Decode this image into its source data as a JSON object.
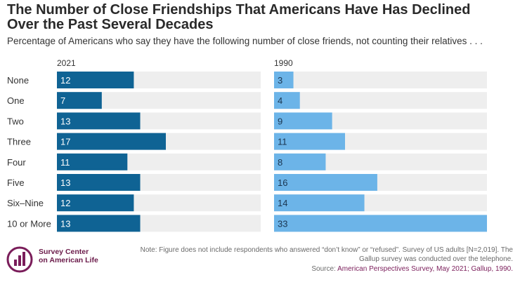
{
  "title": "The Number of Close Friendships That Americans Have Has Declined Over the Past Several Decades",
  "subtitle": "Percentage of Americans who say they have the following number of close friends, not counting their relatives . . .",
  "colors": {
    "bar_2021": "#0f6394",
    "bar_1990": "#6cb4e8",
    "track": "#eeeeee",
    "brand": "#7a1d5a"
  },
  "chart_data": {
    "type": "bar",
    "orientation": "horizontal",
    "categories": [
      "None",
      "One",
      "Two",
      "Three",
      "Four",
      "Five",
      "Six–Nine",
      "10 or More"
    ],
    "series": [
      {
        "name": "2021",
        "values": [
          12,
          7,
          13,
          17,
          11,
          13,
          12,
          13
        ]
      },
      {
        "name": "1990",
        "values": [
          3,
          4,
          9,
          11,
          8,
          16,
          14,
          33
        ]
      }
    ],
    "xlim": [
      0,
      33
    ],
    "grid": false
  },
  "footer": {
    "logo_line1": "Survey Center",
    "logo_line2": "on American Life",
    "note": "Note: Figure does not include respondents who answered “don’t know” or “refused”. Survey of US adults [N=2,019]. The Gallup survey was conducted over the telephone.",
    "source_label": "Source: ",
    "source_text": "American Perspectives Survey, May 2021; Gallup, 1990."
  }
}
